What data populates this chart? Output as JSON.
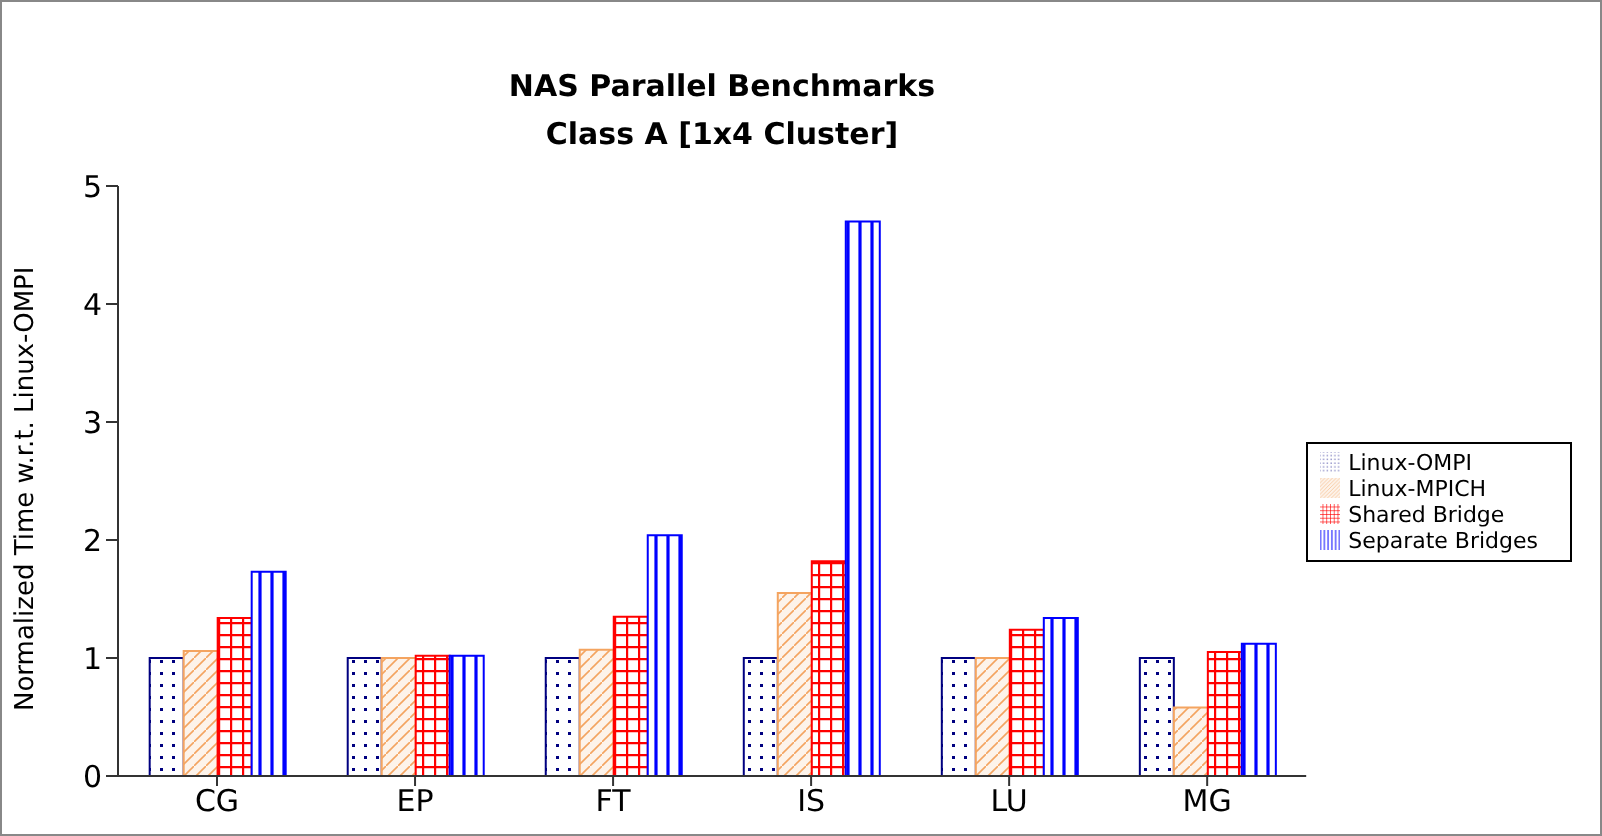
{
  "chart_data": {
    "type": "bar",
    "title": "NAS Parallel Benchmarks",
    "subtitle": "Class A [1x4 Cluster]",
    "ylabel": "Normalized Time w.r.t. Linux-OMPI",
    "categories": [
      "CG",
      "EP",
      "FT",
      "IS",
      "LU",
      "MG"
    ],
    "series": [
      {
        "name": "Linux-OMPI",
        "color": "#000080",
        "values": [
          1,
          1,
          1,
          1,
          1,
          1
        ]
      },
      {
        "name": "Linux-MPICH",
        "color": "#f4a460",
        "values": [
          1.06,
          1,
          1.07,
          1.55,
          1,
          0.58
        ]
      },
      {
        "name": "Shared Bridge",
        "color": "#ff0000",
        "values": [
          1.34,
          1.02,
          1.35,
          1.82,
          1.24,
          1.05
        ]
      },
      {
        "name": "Separate Bridges",
        "color": "#0000ff",
        "values": [
          1.73,
          1.02,
          2.04,
          4.7,
          1.34,
          1.12
        ]
      }
    ],
    "ylim": [
      0,
      5
    ],
    "yticks": [
      0,
      1,
      2,
      3,
      4,
      5
    ],
    "grid": false,
    "legend": "right"
  }
}
